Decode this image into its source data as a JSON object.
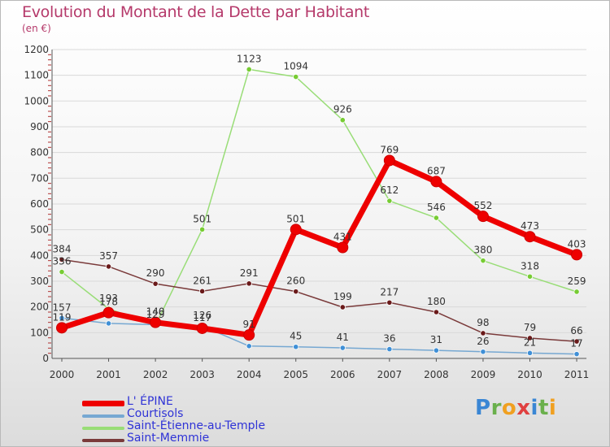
{
  "header": {
    "title": "Evolution du Montant de la Dette par Habitant",
    "subtitle": "(en €)"
  },
  "colors": {
    "title": "#b5396a",
    "legend_text": "#2f33d6",
    "grid": "#d9d9d9"
  },
  "chart_data": {
    "type": "line",
    "title": "Evolution du Montant de la Dette par Habitant",
    "subtitle": "(en €)",
    "xlabel": "",
    "ylabel": "",
    "x": [
      "2000",
      "2001",
      "2002",
      "2003",
      "2004",
      "2005",
      "2006",
      "2007",
      "2008",
      "2009",
      "2010",
      "2011"
    ],
    "ylim": [
      0,
      1200
    ],
    "yticks": [
      0,
      100,
      200,
      300,
      400,
      500,
      600,
      700,
      800,
      900,
      1000,
      1100,
      1200
    ],
    "grid": "horizontal",
    "legend_position": "bottom-left",
    "series": [
      {
        "name": "L' ÉPINE",
        "color": "#ee0000",
        "marker": "#ee0000",
        "width": 7,
        "values": [
          119,
          178,
          140,
          117,
          91,
          501,
          431,
          769,
          687,
          552,
          473,
          403
        ],
        "labels": [
          "119",
          "178",
          "140",
          "117",
          "91",
          "501",
          "431",
          "769",
          "687",
          "552",
          "473",
          "403"
        ]
      },
      {
        "name": "Courtisols",
        "color": "#76a8d2",
        "marker": "#3f8fd6",
        "width": 1.5,
        "values": [
          157,
          136,
          131,
          126,
          48,
          45,
          41,
          36,
          31,
          26,
          21,
          17
        ],
        "labels": [
          "157",
          "",
          "",
          "126",
          "",
          "45",
          "41",
          "36",
          "31",
          "26",
          "21",
          "17"
        ]
      },
      {
        "name": "Saint-Étienne-au-Temple",
        "color": "#99dd77",
        "marker": "#77cc33",
        "width": 1.5,
        "values": [
          336,
          193,
          129,
          501,
          1123,
          1094,
          926,
          612,
          546,
          380,
          318,
          259
        ],
        "labels": [
          "336",
          "193",
          "129",
          "501",
          "1123",
          "1094",
          "926",
          "612",
          "546",
          "380",
          "318",
          "259"
        ]
      },
      {
        "name": "Saint-Memmie",
        "color": "#7a3a3a",
        "marker": "#6a1a1a",
        "width": 1.5,
        "values": [
          384,
          357,
          290,
          261,
          291,
          260,
          199,
          217,
          180,
          98,
          79,
          66
        ],
        "labels": [
          "384",
          "357",
          "290",
          "261",
          "291",
          "260",
          "199",
          "217",
          "180",
          "98",
          "79",
          "66"
        ]
      }
    ]
  },
  "brand": {
    "letters": [
      "P",
      "r",
      "o",
      "x",
      "i",
      "t",
      "i"
    ],
    "letter_colors": [
      "#3a86d4",
      "#6ab04c",
      "#f0a020",
      "#e04040",
      "#3a86d4",
      "#6ab04c",
      "#f0a020"
    ]
  }
}
